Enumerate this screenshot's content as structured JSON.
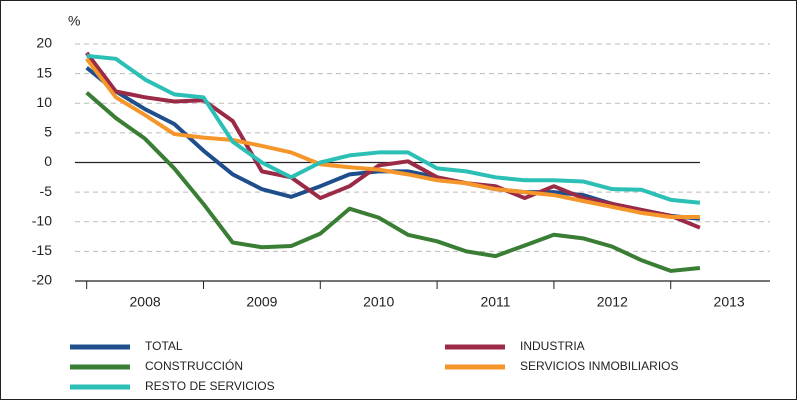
{
  "chart_data": {
    "type": "line",
    "y_label": "%",
    "x": [
      2008.0,
      2008.25,
      2008.5,
      2008.75,
      2009.0,
      2009.25,
      2009.5,
      2009.75,
      2010.0,
      2010.25,
      2010.5,
      2010.75,
      2011.0,
      2011.25,
      2011.5,
      2011.75,
      2012.0,
      2012.25,
      2012.5,
      2012.75,
      2013.0,
      2013.25
    ],
    "xlim": [
      2007.9,
      2013.85
    ],
    "xticks": [
      {
        "value": 2008.5,
        "label": "2008"
      },
      {
        "value": 2009.5,
        "label": "2009"
      },
      {
        "value": 2010.5,
        "label": "2010"
      },
      {
        "value": 2011.5,
        "label": "2011"
      },
      {
        "value": 2012.5,
        "label": "2012"
      },
      {
        "value": 2013.5,
        "label": "2013"
      }
    ],
    "ylim": [
      -20,
      20
    ],
    "yticks": [
      -20,
      -15,
      -10,
      -5,
      0,
      5,
      10,
      15,
      20
    ],
    "grid": true,
    "legend": "bottom",
    "series": [
      {
        "name": "TOTAL",
        "color": "#1f4e8c",
        "values": [
          16,
          12,
          9,
          6.5,
          2,
          -2,
          -4.5,
          -5.8,
          -4,
          -2,
          -1.5,
          -1.5,
          -2.5,
          -3.5,
          -4.5,
          -5,
          -5,
          -5.5,
          -7,
          -8,
          -9,
          -9.5
        ]
      },
      {
        "name": "INDUSTRIA",
        "color": "#9b2a47",
        "values": [
          18.5,
          12,
          11,
          10.3,
          10.5,
          7,
          -1.5,
          -2.5,
          -6,
          -4,
          -0.5,
          0.2,
          -2.5,
          -3.5,
          -4,
          -6,
          -4,
          -6,
          -7,
          -8,
          -9,
          -11
        ]
      },
      {
        "name": "CONSTRUCCIÓN",
        "color": "#3a7d34",
        "values": [
          11.8,
          7.5,
          4,
          -1,
          -7,
          -13.5,
          -14.3,
          -14.1,
          -12,
          -7.8,
          -9.3,
          -12.2,
          -13.3,
          -15,
          -15.8,
          -14,
          -12.2,
          -12.8,
          -14.2,
          -16.5,
          -18.3,
          -17.8
        ]
      },
      {
        "name": "SERVICIOS INMOBILIARIOS",
        "color": "#f5962a",
        "values": [
          17.5,
          11,
          8,
          4.8,
          4.2,
          3.8,
          2.8,
          1.7,
          -0.3,
          -0.8,
          -1.2,
          -2,
          -3,
          -3.5,
          -4.5,
          -5,
          -5.5,
          -6.5,
          -7.5,
          -8.5,
          -9.2,
          -9.2
        ]
      },
      {
        "name": "RESTO DE SERVICIOS",
        "color": "#2bbfb5",
        "values": [
          18,
          17.5,
          14,
          11.5,
          11,
          3.5,
          0,
          -2.5,
          0,
          1.2,
          1.7,
          1.7,
          -1,
          -1.5,
          -2.5,
          -3,
          -3,
          -3.2,
          -4.5,
          -4.6,
          -6.3,
          -6.8
        ]
      }
    ]
  }
}
